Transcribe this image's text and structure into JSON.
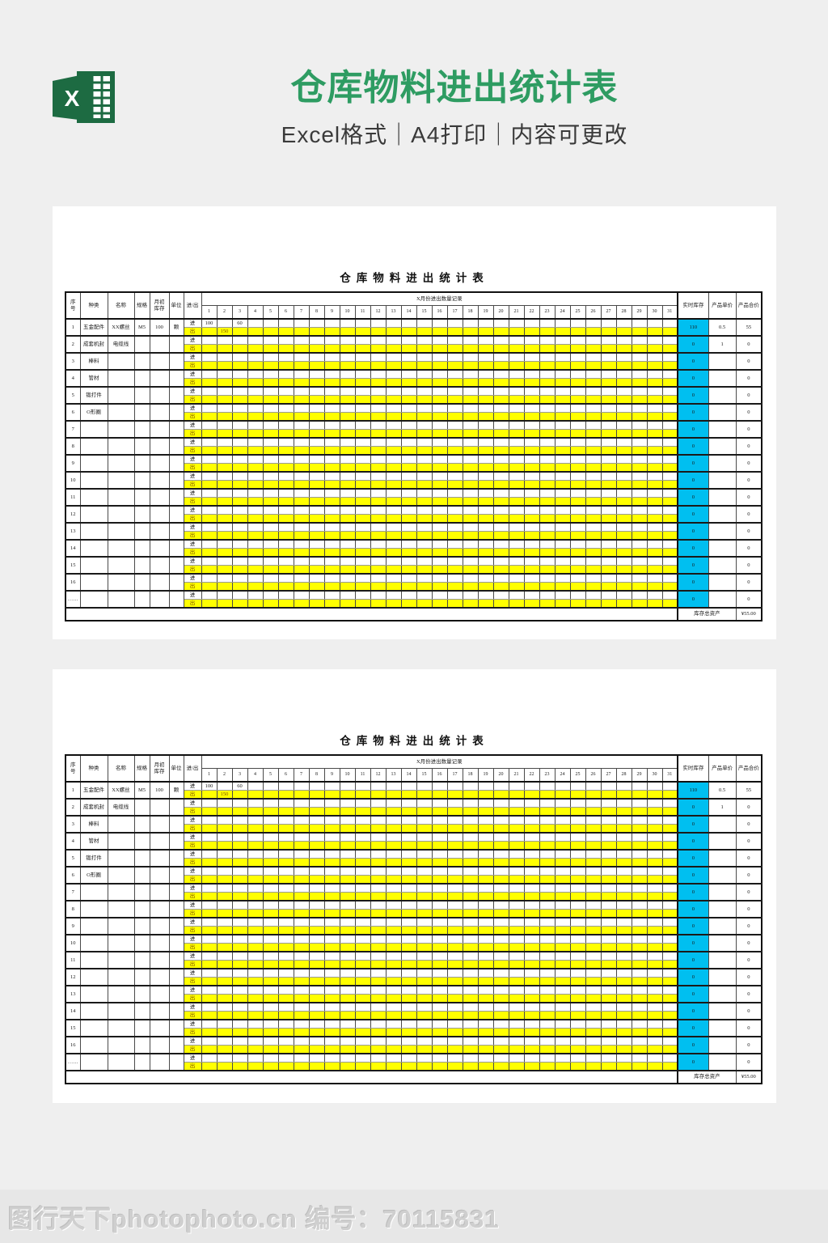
{
  "header": {
    "logo_letter": "X",
    "title": "仓库物料进出统计表",
    "subtitle": "Excel格式｜A4打印｜内容可更改"
  },
  "sheet": {
    "table_title": "仓库物料进出统计表",
    "columns": {
      "left": [
        "序\n号",
        "种类",
        "名称",
        "规格",
        "月初\n库存",
        "单位",
        "进/出"
      ],
      "month_span": "X月份进出数量记录",
      "days": [
        "1",
        "2",
        "3",
        "4",
        "5",
        "6",
        "7",
        "8",
        "9",
        "10",
        "11",
        "12",
        "13",
        "14",
        "15",
        "16",
        "17",
        "18",
        "19",
        "20",
        "21",
        "22",
        "23",
        "24",
        "25",
        "26",
        "27",
        "28",
        "29",
        "30",
        "31"
      ],
      "right": [
        "实时库存",
        "产品单价",
        "产品合价"
      ]
    },
    "in_label": "进",
    "out_label": "出",
    "items": [
      {
        "no": "1",
        "category": "五金配件",
        "name": "XX螺丝",
        "spec": "M5",
        "initial": "100",
        "unit": "颗",
        "in": {
          "1": "100",
          "3": "60"
        },
        "out": {
          "2": "150"
        },
        "stock": "110",
        "price": "0.5",
        "total": "55"
      },
      {
        "no": "2",
        "category": "成套机封",
        "name": "电缆线",
        "spec": "",
        "initial": "",
        "unit": "",
        "in": {},
        "out": {},
        "stock": "0",
        "price": "1",
        "total": "0"
      },
      {
        "no": "3",
        "category": "棒料",
        "name": "",
        "spec": "",
        "initial": "",
        "unit": "",
        "in": {},
        "out": {},
        "stock": "0",
        "price": "",
        "total": "0"
      },
      {
        "no": "4",
        "category": "管材",
        "name": "",
        "spec": "",
        "initial": "",
        "unit": "",
        "in": {},
        "out": {},
        "stock": "0",
        "price": "",
        "total": "0"
      },
      {
        "no": "5",
        "category": "锻打件",
        "name": "",
        "spec": "",
        "initial": "",
        "unit": "",
        "in": {},
        "out": {},
        "stock": "0",
        "price": "",
        "total": "0"
      },
      {
        "no": "6",
        "category": "O形圈",
        "name": "",
        "spec": "",
        "initial": "",
        "unit": "",
        "in": {},
        "out": {},
        "stock": "0",
        "price": "",
        "total": "0"
      },
      {
        "no": "7",
        "category": "",
        "name": "",
        "spec": "",
        "initial": "",
        "unit": "",
        "in": {},
        "out": {},
        "stock": "0",
        "price": "",
        "total": "0"
      },
      {
        "no": "8",
        "category": "",
        "name": "",
        "spec": "",
        "initial": "",
        "unit": "",
        "in": {},
        "out": {},
        "stock": "0",
        "price": "",
        "total": "0"
      },
      {
        "no": "9",
        "category": "",
        "name": "",
        "spec": "",
        "initial": "",
        "unit": "",
        "in": {},
        "out": {},
        "stock": "0",
        "price": "",
        "total": "0"
      },
      {
        "no": "10",
        "category": "",
        "name": "",
        "spec": "",
        "initial": "",
        "unit": "",
        "in": {},
        "out": {},
        "stock": "0",
        "price": "",
        "total": "0"
      },
      {
        "no": "11",
        "category": "",
        "name": "",
        "spec": "",
        "initial": "",
        "unit": "",
        "in": {},
        "out": {},
        "stock": "0",
        "price": "",
        "total": "0"
      },
      {
        "no": "12",
        "category": "",
        "name": "",
        "spec": "",
        "initial": "",
        "unit": "",
        "in": {},
        "out": {},
        "stock": "0",
        "price": "",
        "total": "0"
      },
      {
        "no": "13",
        "category": "",
        "name": "",
        "spec": "",
        "initial": "",
        "unit": "",
        "in": {},
        "out": {},
        "stock": "0",
        "price": "",
        "total": "0"
      },
      {
        "no": "14",
        "category": "",
        "name": "",
        "spec": "",
        "initial": "",
        "unit": "",
        "in": {},
        "out": {},
        "stock": "0",
        "price": "",
        "total": "0"
      },
      {
        "no": "15",
        "category": "",
        "name": "",
        "spec": "",
        "initial": "",
        "unit": "",
        "in": {},
        "out": {},
        "stock": "0",
        "price": "",
        "total": "0"
      },
      {
        "no": "16",
        "category": "",
        "name": "",
        "spec": "",
        "initial": "",
        "unit": "",
        "in": {},
        "out": {},
        "stock": "0",
        "price": "",
        "total": "0"
      },
      {
        "no": "……",
        "category": "",
        "name": "",
        "spec": "",
        "initial": "",
        "unit": "",
        "in": {},
        "out": {},
        "stock": "0",
        "price": "",
        "total": "0"
      }
    ],
    "footer": {
      "label": "库存总资产",
      "value": "¥55.00"
    }
  },
  "watermark": {
    "text": "图行天下photophoto.cn 编号：70115831"
  },
  "colors": {
    "accent_green": "#2e9c62",
    "excel_green": "#1d6b42",
    "highlight_yellow": "#ffff00",
    "highlight_cyan": "#00bff0",
    "page_background": "#efefef"
  }
}
